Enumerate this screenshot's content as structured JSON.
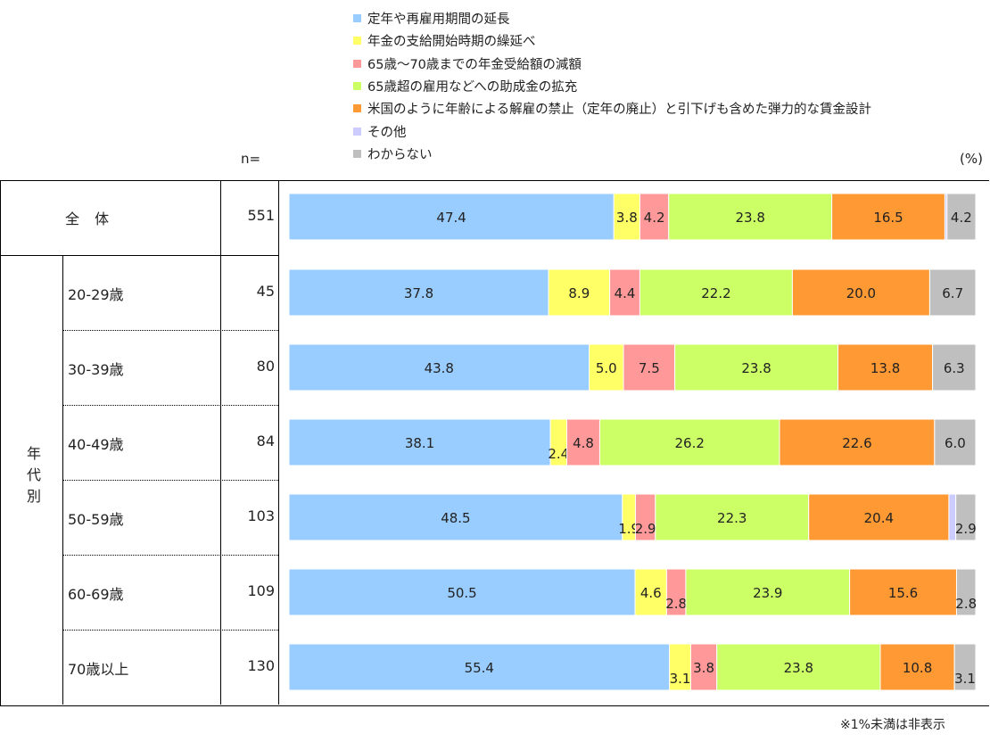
{
  "chart_data": {
    "type": "bar",
    "orientation": "horizontal-stacked-100",
    "unit": "(%)",
    "n_header": "n=",
    "legend_position": "top",
    "series": [
      {
        "name": "定年や再雇用期間の延長",
        "color": "#99CCFF"
      },
      {
        "name": "年金の支給開始時期の繰延べ",
        "color": "#FFFF66"
      },
      {
        "name": "65歳～70歳までの年金受給額の減額",
        "color": "#FF9999"
      },
      {
        "name": "65歳超の雇用などへの助成金の拡充",
        "color": "#CCFF66"
      },
      {
        "name": "米国のように年齢による解雇の禁止（定年の廃止）と引下げも含めた弾力的な賃金設計",
        "color": "#FF9933"
      },
      {
        "name": "その他",
        "color": "#CCCCFF"
      },
      {
        "name": "わからない",
        "color": "#BFBFBF"
      }
    ],
    "rows": [
      {
        "label": "全 体",
        "n": "551",
        "values": [
          47.4,
          3.8,
          4.2,
          23.8,
          16.5,
          0.3,
          4.2
        ],
        "labels": [
          "47.4",
          "3.8",
          "4.2",
          "23.8",
          "16.5",
          "",
          "4.2"
        ]
      },
      {
        "label": "20-29歳",
        "n": "45",
        "values": [
          37.8,
          8.9,
          4.4,
          22.2,
          20.0,
          0.0,
          6.7
        ],
        "labels": [
          "37.8",
          "8.9",
          "4.4",
          "22.2",
          "20.0",
          "",
          "6.7"
        ]
      },
      {
        "label": "30-39歳",
        "n": "80",
        "values": [
          43.8,
          5.0,
          7.5,
          23.8,
          13.8,
          0.0,
          6.3
        ],
        "labels": [
          "43.8",
          "5.0",
          "7.5",
          "23.8",
          "13.8",
          "",
          "6.3"
        ]
      },
      {
        "label": "40-49歳",
        "n": "84",
        "values": [
          38.1,
          2.4,
          4.8,
          26.2,
          22.6,
          0.0,
          6.0
        ],
        "labels": [
          "38.1",
          "2.4",
          "4.8",
          "26.2",
          "22.6",
          "",
          "6.0"
        ]
      },
      {
        "label": "50-59歳",
        "n": "103",
        "values": [
          48.5,
          1.9,
          2.9,
          22.3,
          20.4,
          1.0,
          2.9
        ],
        "labels": [
          "48.5",
          "1.9",
          "2.9",
          "22.3",
          "20.4",
          "",
          "2.9"
        ]
      },
      {
        "label": "60-69歳",
        "n": "109",
        "values": [
          50.5,
          4.6,
          2.8,
          23.9,
          15.6,
          0.0,
          2.8
        ],
        "labels": [
          "50.5",
          "4.6",
          "2.8",
          "23.9",
          "15.6",
          "",
          "2.8"
        ]
      },
      {
        "label": "70歳以上",
        "n": "130",
        "values": [
          55.4,
          3.1,
          3.8,
          23.8,
          10.8,
          0.0,
          3.1
        ],
        "labels": [
          "55.4",
          "3.1",
          "3.8",
          "23.8",
          "10.8",
          "",
          "3.1"
        ]
      }
    ],
    "group_label": "年代別",
    "footnote": "※1%未満は非表示"
  }
}
